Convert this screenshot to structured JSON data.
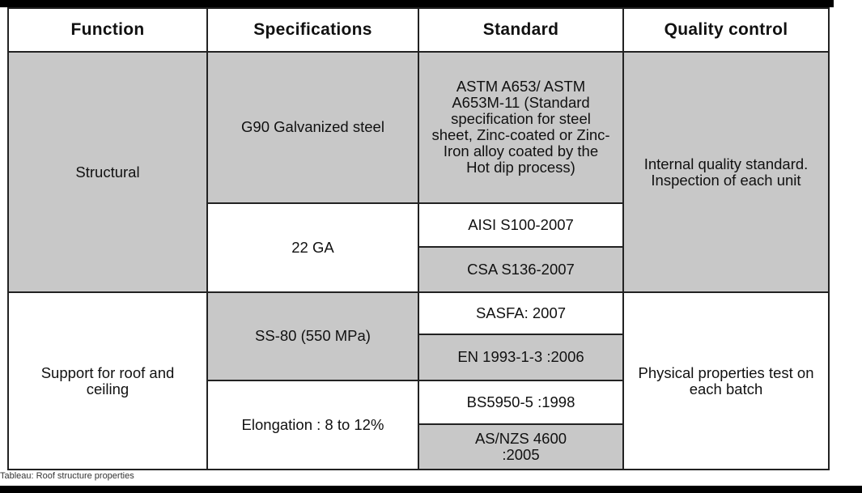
{
  "table": {
    "headers": [
      "Function",
      "Specifications",
      "Standard",
      "Quality control"
    ],
    "function": {
      "structural": "Structural",
      "support": "Support for roof and ceiling"
    },
    "specs": {
      "g90": "G90 Galvanized steel",
      "ga22": "22 GA",
      "ss80": "SS-80 (550 MPa)",
      "elongation": "Elongation : 8 to 12%"
    },
    "standards": {
      "astm": "ASTM A653/ ASTM A653M-11 (Standard specification for steel sheet, Zinc-coated or Zinc-Iron alloy coated by the Hot dip process)",
      "aisi": "AISI S100-2007",
      "csa": "CSA S136-2007",
      "sasfa": "SASFA: 2007",
      "en": "EN 1993-1-3 :2006",
      "bs": "BS5950-5 :1998",
      "asnzs": "AS/NZS 4600 :2005"
    },
    "quality": {
      "internal": "Internal quality standard. Inspection of each unit",
      "physical": "Physical properties test on each batch"
    }
  },
  "caption": "Tableau: Roof structure properties"
}
